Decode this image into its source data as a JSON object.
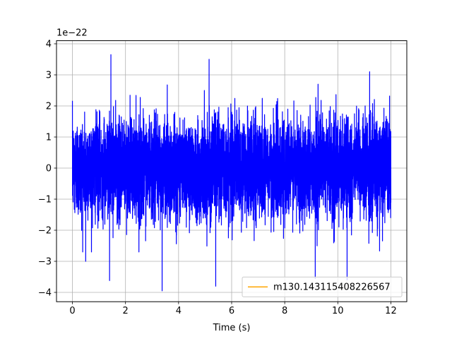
{
  "chart_data": {
    "type": "line",
    "title": "",
    "xlabel": "Time (s)",
    "ylabel": "",
    "y_offset_label": "1e−22",
    "xlim": [
      -0.6,
      12.6
    ],
    "ylim": [
      -4.3,
      4.1
    ],
    "x_ticks": [
      0,
      2,
      4,
      6,
      8,
      10,
      12
    ],
    "x_tick_labels": [
      "0",
      "2",
      "4",
      "6",
      "8",
      "10",
      "12"
    ],
    "y_ticks": [
      -4,
      -3,
      -2,
      -1,
      0,
      1,
      2,
      3,
      4
    ],
    "y_tick_labels": [
      "−4",
      "−3",
      "−2",
      "−1",
      "0",
      "1",
      "2",
      "3",
      "4"
    ],
    "grid": true,
    "legend_position": "lower-right",
    "series": [
      {
        "name": "",
        "color": "#0000ff",
        "x_range": [
          0,
          12
        ],
        "y_range": [
          -3.95,
          3.65
        ],
        "extremes": [
          {
            "x": 1.45,
            "y": 3.65
          },
          {
            "x": 5.15,
            "y": 3.5
          },
          {
            "x": 3.38,
            "y": -3.95
          },
          {
            "x": 5.4,
            "y": -3.8
          },
          {
            "x": 9.15,
            "y": -3.55
          },
          {
            "x": 10.35,
            "y": -3.6
          },
          {
            "x": 1.4,
            "y": -3.62
          },
          {
            "x": 0.5,
            "y": -3.0
          },
          {
            "x": 11.2,
            "y": 3.1
          }
        ]
      },
      {
        "name": "m130.143115408226567",
        "color": "#ffa500",
        "values": []
      }
    ]
  }
}
